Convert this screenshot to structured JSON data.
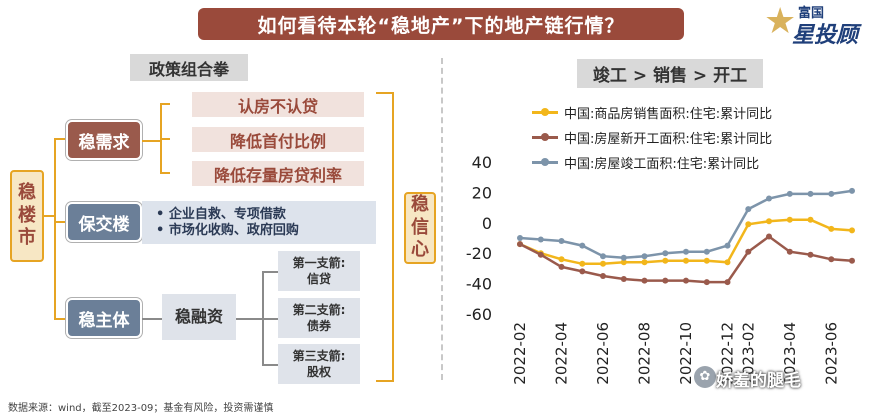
{
  "header": {
    "title": "如何看待本轮“稳地产”下的地产链行情？"
  },
  "logo": {
    "top": "富国",
    "bottom": "星投顾"
  },
  "left": {
    "policy_title": "政策组合拳",
    "root": [
      "稳",
      "楼",
      "市"
    ],
    "demand": "稳需求",
    "demand_items": [
      "认房不认贷",
      "降低首付比例",
      "降低存量房贷利率"
    ],
    "delivery": "保交楼",
    "delivery_items": [
      "• 企业自救、专项借款",
      "• 市场化收购、政府回购"
    ],
    "entity": "稳主体",
    "financing": "稳融资",
    "arrows": [
      {
        "l1": "第一支箭:",
        "l2": "信贷"
      },
      {
        "l1": "第二支箭:",
        "l2": "债券"
      },
      {
        "l1": "第三支箭:",
        "l2": "股权"
      }
    ],
    "confidence": [
      "稳",
      "信",
      "心"
    ]
  },
  "right": {
    "chart_title": "竣工 > 销售 > 开工"
  },
  "footer": {
    "source": "数据来源：wind，截至2023-09；基金有风险，投资需谨慎"
  },
  "watermark": {
    "text": "娇羞的腿毛"
  },
  "chart_data": {
    "type": "line",
    "x": [
      "2022-02",
      "2022-03",
      "2022-04",
      "2022-05",
      "2022-06",
      "2022-07",
      "2022-08",
      "2022-09",
      "2022-10",
      "2022-11",
      "2022-12",
      "2023-02",
      "2023-03",
      "2023-04",
      "2023-05",
      "2023-06",
      "2023-07"
    ],
    "x_tick_labels": [
      "2022-02",
      "2022-04",
      "2022-06",
      "2022-08",
      "2022-10",
      "2022-12",
      "2023-02",
      "2023-04",
      "2023-06"
    ],
    "ylim": [
      -60,
      40
    ],
    "yticks": [
      40,
      20,
      0,
      -20,
      -40,
      -60
    ],
    "series": [
      {
        "name": "中国:商品房销售面积:住宅:累计同比",
        "color": "#f2b61b",
        "values": [
          -14,
          -20,
          -24,
          -27,
          -27,
          -26,
          -26,
          -25,
          -25,
          -25,
          -26,
          -1,
          1,
          2,
          2,
          -4,
          -5
        ]
      },
      {
        "name": "中国:房屋新开工面积:住宅:累计同比",
        "color": "#9a5a4c",
        "values": [
          -14,
          -21,
          -29,
          -32,
          -35,
          -37,
          -38,
          -38,
          -38,
          -39,
          -39,
          -19,
          -9,
          -19,
          -21,
          -24,
          -25
        ]
      },
      {
        "name": "中国:房屋竣工面积:住宅:累计同比",
        "color": "#7d94aa",
        "values": [
          -10,
          -11,
          -12,
          -15,
          -22,
          -23,
          -22,
          -20,
          -19,
          -19,
          -15,
          9,
          16,
          19,
          19,
          19,
          21
        ]
      }
    ]
  }
}
